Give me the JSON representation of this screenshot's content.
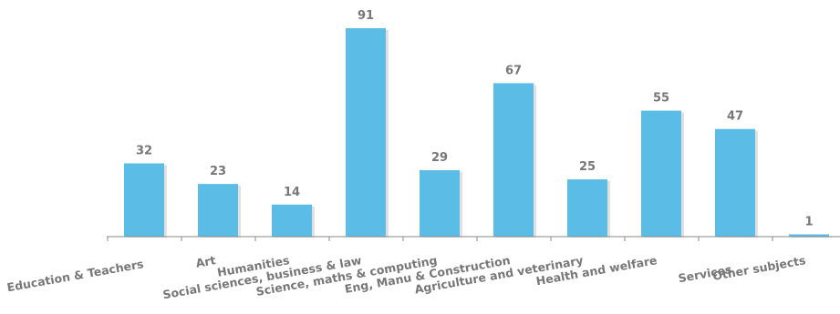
{
  "chart_data": {
    "type": "bar",
    "categories": [
      "Education & Teachers",
      "Art",
      "Humanities",
      "Social sciences, business & law",
      "Science, maths & computing",
      "Eng, Manu & Construction",
      "Agriculture and veterinary",
      "Health and welfare",
      "Services",
      "Other subjects"
    ],
    "values": [
      32,
      23,
      14,
      91,
      29,
      67,
      25,
      55,
      47,
      1
    ],
    "title": "",
    "xlabel": "",
    "ylabel": "",
    "ylim": [
      0,
      95
    ],
    "grid": false,
    "data_labels": true,
    "colors": {
      "bar": "#5bbde6",
      "label_text": "#777777",
      "axis": "#8a8a8a"
    }
  }
}
